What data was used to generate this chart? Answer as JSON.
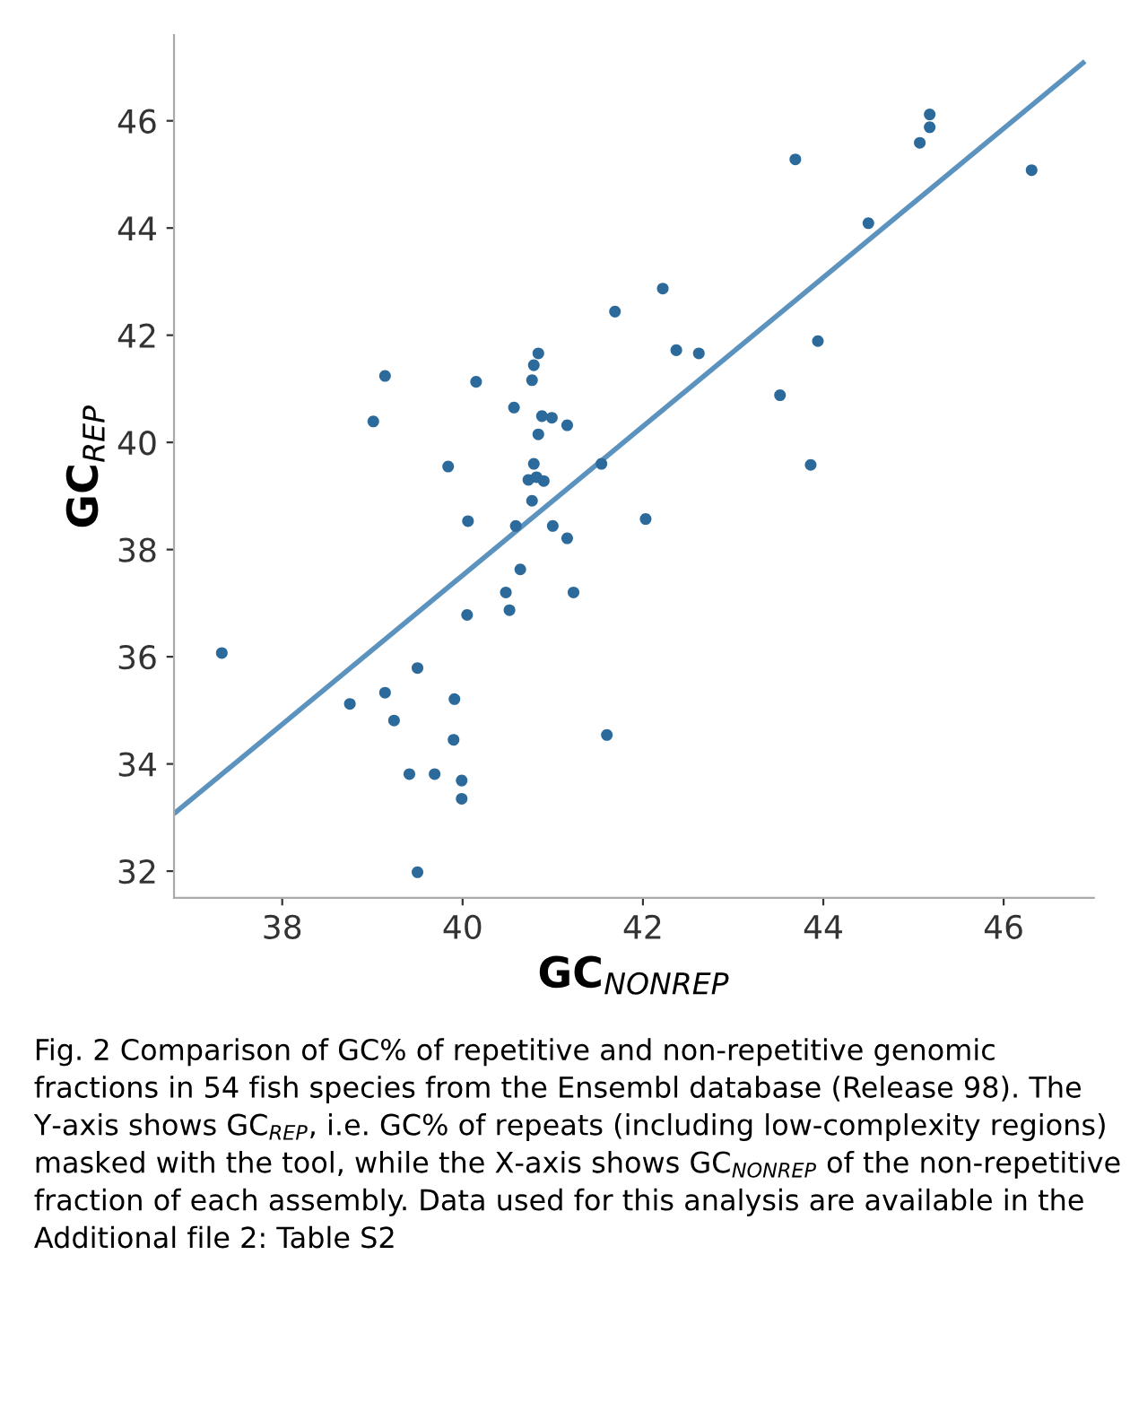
{
  "chart_data": {
    "type": "scatter",
    "xlabel": "GC$_{NONREP}$",
    "ylabel": "GC$_{REP}$",
    "xlim": [
      36.8,
      47.0
    ],
    "ylim": [
      31.5,
      47.6
    ],
    "xticks": [
      38,
      40,
      42,
      44,
      46
    ],
    "yticks": [
      32,
      34,
      36,
      38,
      40,
      42,
      44,
      46
    ],
    "grid": false,
    "legend": false,
    "series": [
      {
        "marker": "circle",
        "color": "#2b6a9a",
        "x": [
          41.69,
          39.14,
          39.01,
          40.15,
          40.84,
          40.79,
          40.77,
          40.57,
          40.88,
          40.99,
          41.16,
          40.84,
          39.84,
          40.79,
          40.73,
          40.9,
          40.82,
          40.77,
          41.54,
          40.06,
          40.59,
          41.0,
          45.18,
          45.18,
          45.07,
          43.69,
          46.31,
          44.5,
          42.22,
          42.37,
          42.62,
          43.94,
          43.52,
          43.86,
          42.03,
          37.33,
          41.16,
          40.64,
          40.48,
          40.52,
          41.23,
          40.05,
          39.5,
          38.75,
          39.14,
          39.24,
          39.91,
          39.9,
          41.6,
          39.41,
          39.69,
          39.99,
          39.99,
          39.5
        ],
        "values": [
          42.44,
          41.24,
          40.39,
          41.13,
          41.66,
          41.44,
          41.16,
          40.65,
          40.49,
          40.46,
          40.32,
          40.15,
          39.55,
          39.6,
          39.3,
          39.28,
          39.35,
          38.91,
          39.6,
          38.53,
          38.44,
          38.44,
          46.12,
          45.88,
          45.59,
          45.28,
          45.08,
          44.09,
          42.87,
          41.72,
          41.66,
          41.89,
          40.88,
          39.58,
          38.57,
          36.07,
          38.21,
          37.63,
          37.2,
          36.87,
          37.2,
          36.78,
          35.79,
          35.12,
          35.33,
          34.81,
          35.21,
          34.45,
          34.54,
          33.81,
          33.81,
          33.69,
          33.35,
          31.98
        ]
      },
      {
        "type": "line",
        "color": "#5b93be",
        "line_style": "solid",
        "x": [
          36.82,
          46.88
        ],
        "values": [
          33.1,
          47.08
        ]
      }
    ],
    "annotations": [
      "Fig. 2 Comparison of GC% of repetitive and non-repetitive genomic fractions in 54 fish species from the Ensembl database (Release 98). The Y-axis shows GC$_{REP}$, i.e. GC% of repeats (including low-complexity regions) masked with the tool, while the X-axis shows GC$_{NONREP}$ of the non-repetitive fraction of each assembly. Data used for this analysis are available in the Additional file 2: Table S2"
    ]
  }
}
